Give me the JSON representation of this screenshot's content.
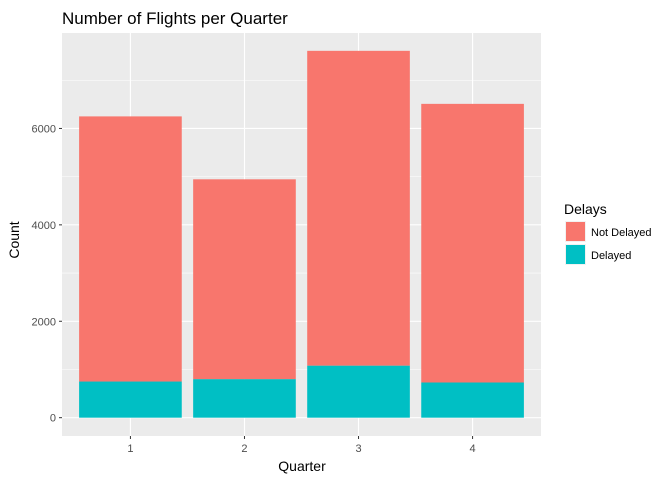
{
  "chart_data": {
    "type": "bar",
    "stacked": true,
    "title": "Number of Flights per Quarter",
    "xlabel": "Quarter",
    "ylabel": "Count",
    "categories": [
      "1",
      "2",
      "3",
      "4"
    ],
    "yticks": [
      0,
      2000,
      4000,
      6000
    ],
    "ylim": [
      -380,
      7980
    ],
    "grid": true,
    "legend": {
      "title": "Delays",
      "placement": "right"
    },
    "series": [
      {
        "name": "Delayed",
        "color": "#00BFC4",
        "values": [
          750,
          800,
          1080,
          730
        ]
      },
      {
        "name": "Not Delayed",
        "color": "#F8766D",
        "values": [
          5500,
          4145,
          6530,
          5780
        ]
      }
    ],
    "legend_order": [
      "Not Delayed",
      "Delayed"
    ],
    "colors": {
      "panel_background": "#EBEBEB",
      "grid_major": "#FFFFFF",
      "tick_text": "#4D4D4D"
    }
  }
}
